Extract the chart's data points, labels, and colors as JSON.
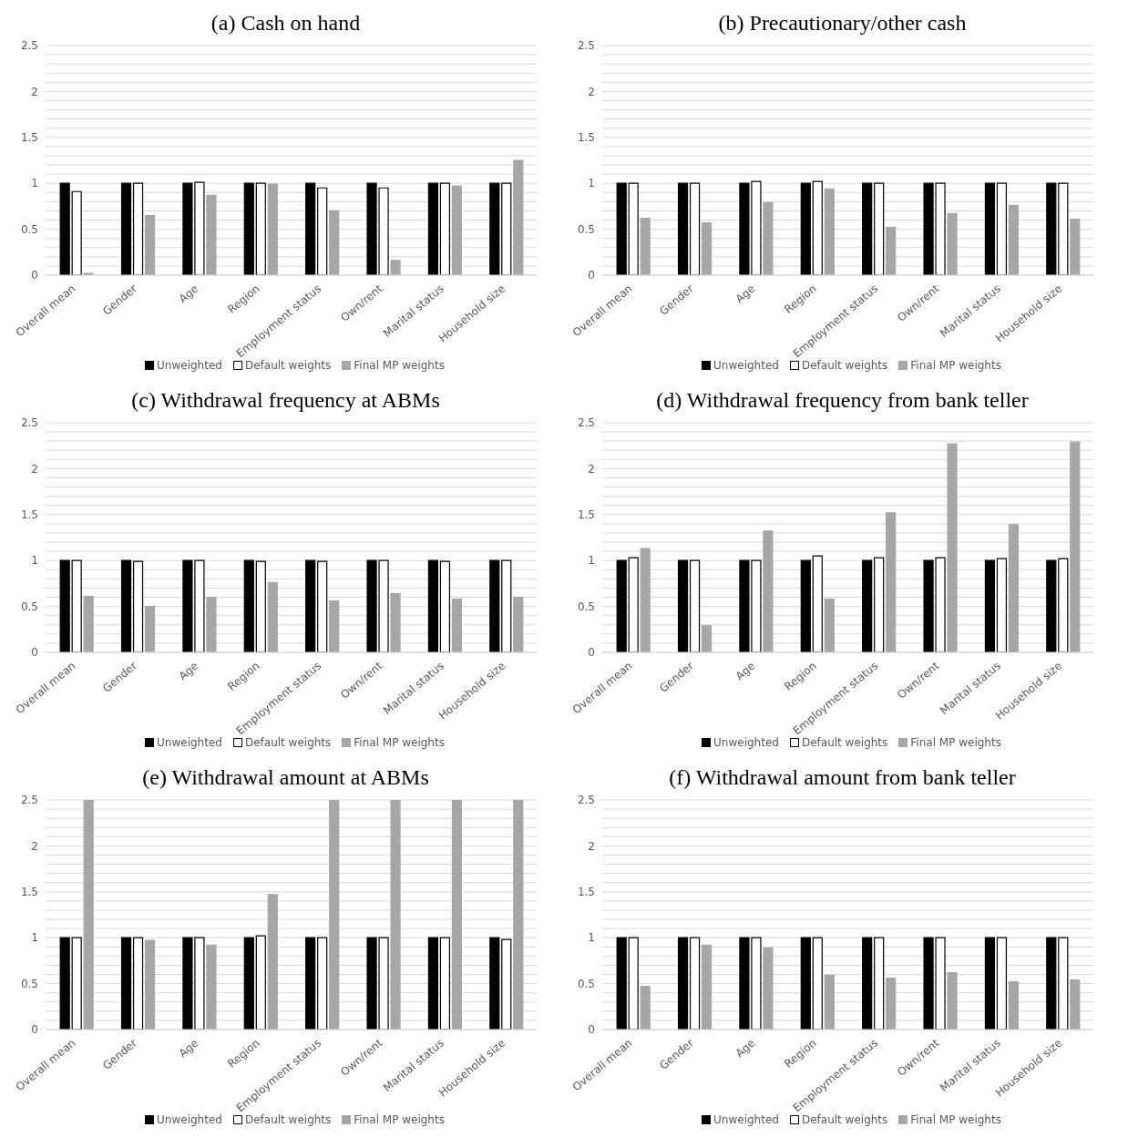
{
  "chart_data": [
    {
      "type": "bar",
      "title": "(a) Cash on hand",
      "categories": [
        "Overall mean",
        "Gender",
        "Age",
        "Region",
        "Employment status",
        "Own/rent",
        "Marital status",
        "Household size"
      ],
      "series": [
        {
          "name": "Unweighted",
          "color": "#000000",
          "values": [
            1,
            1,
            1,
            1,
            1,
            1,
            1,
            1
          ]
        },
        {
          "name": "Default weights",
          "color": "#ffffff",
          "values": [
            0.91,
            1.0,
            1.01,
            1.0,
            0.95,
            0.95,
            1.0,
            1.0
          ]
        },
        {
          "name": "Final MP weights",
          "color": "#a6a6a6",
          "values": [
            0.02,
            0.65,
            0.87,
            0.99,
            0.7,
            0.16,
            0.97,
            1.25
          ]
        }
      ],
      "ylim": [
        0,
        2.5
      ],
      "yticks": [
        0,
        {
          "value": 0.1,
          "label": null
        },
        {
          "value": 0.2,
          "label": null
        },
        {
          "value": 0.3,
          "label": null
        },
        {
          "value": 0.4,
          "label": null
        },
        0.5,
        {
          "value": 0.6,
          "label": null
        },
        {
          "value": 0.7,
          "label": null
        },
        {
          "value": 0.8,
          "label": null
        },
        {
          "value": 0.9,
          "label": null
        },
        1,
        {
          "value": 1.1,
          "label": null
        },
        {
          "value": 1.2,
          "label": null
        },
        {
          "value": 1.3,
          "label": null
        },
        {
          "value": 1.4,
          "label": null
        },
        1.5,
        {
          "value": 1.6,
          "label": null
        },
        {
          "value": 1.7,
          "label": null
        },
        {
          "value": 1.8,
          "label": null
        },
        {
          "value": 1.9,
          "label": null
        },
        2,
        {
          "value": 2.1,
          "label": null
        },
        {
          "value": 2.2,
          "label": null
        },
        {
          "value": 2.3,
          "label": null
        },
        {
          "value": 2.4,
          "label": null
        },
        2.5
      ],
      "grid": "y",
      "legend": "bottom"
    },
    {
      "type": "bar",
      "title": "(b) Precautionary/other cash",
      "categories": [
        "Overall mean",
        "Gender",
        "Age",
        "Region",
        "Employment status",
        "Own/rent",
        "Marital status",
        "Household size"
      ],
      "series": [
        {
          "name": "Unweighted",
          "color": "#000000",
          "values": [
            1,
            1,
            1,
            1,
            1,
            1,
            1,
            1
          ]
        },
        {
          "name": "Default weights",
          "color": "#ffffff",
          "values": [
            1,
            1,
            1.02,
            1.02,
            1,
            1,
            1,
            1
          ]
        },
        {
          "name": "Final MP weights",
          "color": "#a6a6a6",
          "values": [
            0.62,
            0.57,
            0.79,
            0.94,
            0.52,
            0.67,
            0.76,
            0.61
          ]
        }
      ],
      "ylim": [
        0,
        2.5
      ],
      "yticks": [
        0,
        {
          "value": 0.1,
          "label": null
        },
        {
          "value": 0.2,
          "label": null
        },
        {
          "value": 0.3,
          "label": null
        },
        {
          "value": 0.4,
          "label": null
        },
        0.5,
        {
          "value": 0.6,
          "label": null
        },
        {
          "value": 0.7,
          "label": null
        },
        {
          "value": 0.8,
          "label": null
        },
        {
          "value": 0.9,
          "label": null
        },
        1,
        {
          "value": 1.1,
          "label": null
        },
        {
          "value": 1.2,
          "label": null
        },
        {
          "value": 1.3,
          "label": null
        },
        {
          "value": 1.4,
          "label": null
        },
        1.5,
        {
          "value": 1.6,
          "label": null
        },
        {
          "value": 1.7,
          "label": null
        },
        {
          "value": 1.8,
          "label": null
        },
        {
          "value": 1.9,
          "label": null
        },
        2,
        {
          "value": 2.1,
          "label": null
        },
        {
          "value": 2.2,
          "label": null
        },
        {
          "value": 2.3,
          "label": null
        },
        {
          "value": 2.4,
          "label": null
        },
        2.5
      ],
      "grid": "y",
      "legend": "bottom"
    },
    {
      "type": "bar",
      "title": "(c) Withdrawal frequency at ABMs",
      "categories": [
        "Overall mean",
        "Gender",
        "Age",
        "Region",
        "Employment status",
        "Own/rent",
        "Marital status",
        "Household size"
      ],
      "series": [
        {
          "name": "Unweighted",
          "color": "#000000",
          "values": [
            1,
            1,
            1,
            1,
            1,
            1,
            1,
            1
          ]
        },
        {
          "name": "Default weights",
          "color": "#ffffff",
          "values": [
            1,
            0.99,
            1,
            0.99,
            0.99,
            1,
            0.99,
            1
          ]
        },
        {
          "name": "Final MP weights",
          "color": "#a6a6a6",
          "values": [
            0.61,
            0.5,
            0.6,
            0.76,
            0.56,
            0.64,
            0.58,
            0.6
          ]
        }
      ],
      "ylim": [
        0,
        2.5
      ],
      "yticks": [
        0,
        {
          "value": 0.1,
          "label": null
        },
        {
          "value": 0.2,
          "label": null
        },
        {
          "value": 0.3,
          "label": null
        },
        {
          "value": 0.4,
          "label": null
        },
        0.5,
        {
          "value": 0.6,
          "label": null
        },
        {
          "value": 0.7,
          "label": null
        },
        {
          "value": 0.8,
          "label": null
        },
        {
          "value": 0.9,
          "label": null
        },
        1,
        {
          "value": 1.1,
          "label": null
        },
        {
          "value": 1.2,
          "label": null
        },
        {
          "value": 1.3,
          "label": null
        },
        {
          "value": 1.4,
          "label": null
        },
        1.5,
        {
          "value": 1.6,
          "label": null
        },
        {
          "value": 1.7,
          "label": null
        },
        {
          "value": 1.8,
          "label": null
        },
        {
          "value": 1.9,
          "label": null
        },
        2,
        {
          "value": 2.1,
          "label": null
        },
        {
          "value": 2.2,
          "label": null
        },
        {
          "value": 2.3,
          "label": null
        },
        {
          "value": 2.4,
          "label": null
        },
        2.5
      ],
      "grid": "y",
      "legend": "bottom"
    },
    {
      "type": "bar",
      "title": "(d) Withdrawal frequency from bank teller",
      "categories": [
        "Overall mean",
        "Gender",
        "Age",
        "Region",
        "Employment status",
        "Own/rent",
        "Marital status",
        "Household size"
      ],
      "series": [
        {
          "name": "Unweighted",
          "color": "#000000",
          "values": [
            1,
            1,
            1,
            1,
            1,
            1,
            1,
            1
          ]
        },
        {
          "name": "Default weights",
          "color": "#ffffff",
          "values": [
            1.03,
            1.0,
            1.0,
            1.05,
            1.03,
            1.03,
            1.02,
            1.02
          ]
        },
        {
          "name": "Final MP weights",
          "color": "#a6a6a6",
          "values": [
            1.13,
            0.29,
            1.32,
            0.58,
            1.52,
            2.27,
            1.39,
            2.29
          ]
        }
      ],
      "ylim": [
        0,
        2.5
      ],
      "yticks": [
        0,
        {
          "value": 0.1,
          "label": null
        },
        {
          "value": 0.2,
          "label": null
        },
        {
          "value": 0.3,
          "label": null
        },
        {
          "value": 0.4,
          "label": null
        },
        0.5,
        {
          "value": 0.6,
          "label": null
        },
        {
          "value": 0.7,
          "label": null
        },
        {
          "value": 0.8,
          "label": null
        },
        {
          "value": 0.9,
          "label": null
        },
        1,
        {
          "value": 1.1,
          "label": null
        },
        {
          "value": 1.2,
          "label": null
        },
        {
          "value": 1.3,
          "label": null
        },
        {
          "value": 1.4,
          "label": null
        },
        1.5,
        {
          "value": 1.6,
          "label": null
        },
        {
          "value": 1.7,
          "label": null
        },
        {
          "value": 1.8,
          "label": null
        },
        {
          "value": 1.9,
          "label": null
        },
        2,
        {
          "value": 2.1,
          "label": null
        },
        {
          "value": 2.2,
          "label": null
        },
        {
          "value": 2.3,
          "label": null
        },
        {
          "value": 2.4,
          "label": null
        },
        2.5
      ],
      "grid": "y",
      "legend": "bottom"
    },
    {
      "type": "bar",
      "title": "(e) Withdrawal amount at ABMs",
      "categories": [
        "Overall mean",
        "Gender",
        "Age",
        "Region",
        "Employment status",
        "Own/rent",
        "Marital status",
        "Household size"
      ],
      "series": [
        {
          "name": "Unweighted",
          "color": "#000000",
          "values": [
            1,
            1,
            1,
            1,
            1,
            1,
            1,
            1
          ]
        },
        {
          "name": "Default weights",
          "color": "#ffffff",
          "values": [
            1,
            1,
            1,
            1.02,
            1,
            1,
            1,
            0.98
          ]
        },
        {
          "name": "Final MP weights",
          "color": "#a6a6a6",
          "values": [
            2.5,
            0.97,
            0.92,
            1.47,
            2.5,
            2.5,
            2.5,
            2.5
          ]
        }
      ],
      "ylim": [
        0,
        2.5
      ],
      "yticks": [
        0,
        {
          "value": 0.1,
          "label": null
        },
        {
          "value": 0.2,
          "label": null
        },
        {
          "value": 0.3,
          "label": null
        },
        {
          "value": 0.4,
          "label": null
        },
        0.5,
        {
          "value": 0.6,
          "label": null
        },
        {
          "value": 0.7,
          "label": null
        },
        {
          "value": 0.8,
          "label": null
        },
        {
          "value": 0.9,
          "label": null
        },
        1,
        {
          "value": 1.1,
          "label": null
        },
        {
          "value": 1.2,
          "label": null
        },
        {
          "value": 1.3,
          "label": null
        },
        {
          "value": 1.4,
          "label": null
        },
        1.5,
        {
          "value": 1.6,
          "label": null
        },
        {
          "value": 1.7,
          "label": null
        },
        {
          "value": 1.8,
          "label": null
        },
        {
          "value": 1.9,
          "label": null
        },
        2,
        {
          "value": 2.1,
          "label": null
        },
        {
          "value": 2.2,
          "label": null
        },
        {
          "value": 2.3,
          "label": null
        },
        {
          "value": 2.4,
          "label": null
        },
        2.5
      ],
      "grid": "y",
      "legend": "bottom"
    },
    {
      "type": "bar",
      "title": "(f) Withdrawal amount from bank teller",
      "categories": [
        "Overall mean",
        "Gender",
        "Age",
        "Region",
        "Employment status",
        "Own/rent",
        "Marital status",
        "Household size"
      ],
      "series": [
        {
          "name": "Unweighted",
          "color": "#000000",
          "values": [
            1,
            1,
            1,
            1,
            1,
            1,
            1,
            1
          ]
        },
        {
          "name": "Default weights",
          "color": "#ffffff",
          "values": [
            1,
            1,
            1,
            1,
            1,
            1,
            1,
            1
          ]
        },
        {
          "name": "Final MP weights",
          "color": "#a6a6a6",
          "values": [
            0.47,
            0.92,
            0.89,
            0.59,
            0.56,
            0.62,
            0.52,
            0.54
          ]
        }
      ],
      "ylim": [
        0,
        2.5
      ],
      "yticks": [
        0,
        {
          "value": 0.1,
          "label": null
        },
        {
          "value": 0.2,
          "label": null
        },
        {
          "value": 0.3,
          "label": null
        },
        {
          "value": 0.4,
          "label": null
        },
        0.5,
        {
          "value": 0.6,
          "label": null
        },
        {
          "value": 0.7,
          "label": null
        },
        {
          "value": 0.8,
          "label": null
        },
        {
          "value": 0.9,
          "label": null
        },
        1,
        {
          "value": 1.1,
          "label": null
        },
        {
          "value": 1.2,
          "label": null
        },
        {
          "value": 1.3,
          "label": null
        },
        {
          "value": 1.4,
          "label": null
        },
        1.5,
        {
          "value": 1.6,
          "label": null
        },
        {
          "value": 1.7,
          "label": null
        },
        {
          "value": 1.8,
          "label": null
        },
        {
          "value": 1.9,
          "label": null
        },
        2,
        {
          "value": 2.1,
          "label": null
        },
        {
          "value": 2.2,
          "label": null
        },
        {
          "value": 2.3,
          "label": null
        },
        {
          "value": 2.4,
          "label": null
        },
        2.5
      ],
      "grid": "y",
      "legend": "bottom"
    }
  ]
}
